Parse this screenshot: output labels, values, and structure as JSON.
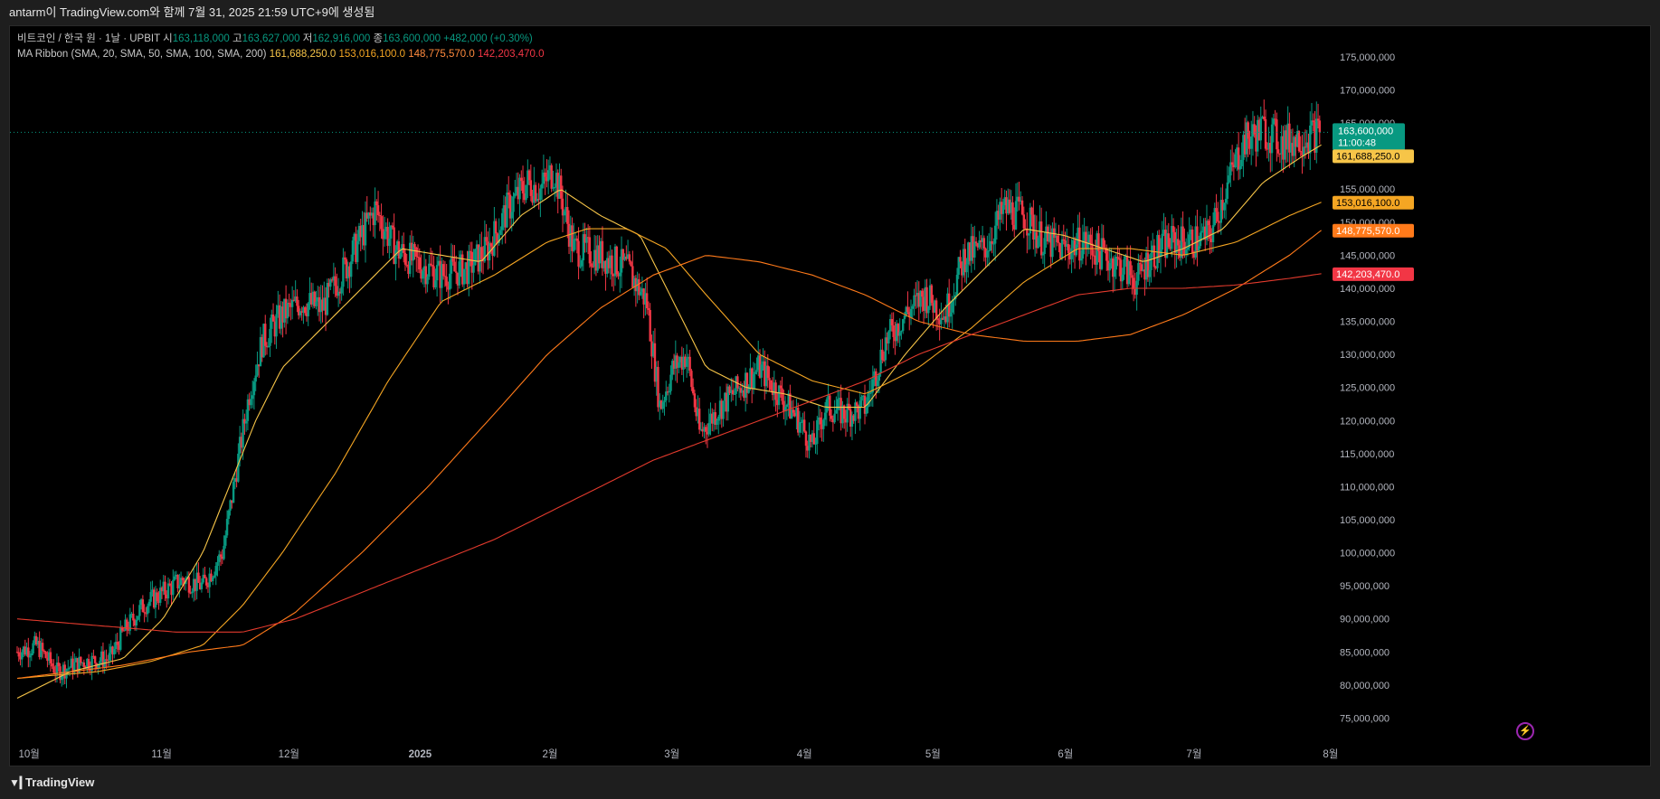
{
  "header": {
    "title": "antarm이 TradingView.com와 함께 7월 31, 2025 21:59 UTC+9에 생성됨"
  },
  "legend": {
    "symbol": "비트코인 / 한국 원 · 1날 · UPBIT",
    "open_label": "시",
    "open": "163,118,000",
    "high_label": "고",
    "high": "163,627,000",
    "low_label": "저",
    "low": "162,916,000",
    "close_label": "종",
    "close": "163,600,000",
    "change": "+482,000 (+0.30%)",
    "ma_label": "MA Ribbon (SMA, 20, SMA, 50, SMA, 100, SMA, 200)",
    "ma20": "161,688,250.0",
    "ma50": "153,016,100.0",
    "ma100": "148,775,570.0",
    "ma200": "142,203,470.0"
  },
  "price_axis": {
    "ticks": [
      "175,000,000",
      "170,000,000",
      "165,000,000",
      "160,000,000",
      "155,000,000",
      "150,000,000",
      "145,000,000",
      "140,000,000",
      "135,000,000",
      "130,000,000",
      "125,000,000",
      "120,000,000",
      "115,000,000",
      "110,000,000",
      "105,000,000",
      "100,000,000",
      "95,000,000",
      "90,000,000",
      "85,000,000",
      "80,000,000",
      "75,000,000"
    ],
    "tick_values": [
      175000000,
      170000000,
      165000000,
      160000000,
      155000000,
      150000000,
      145000000,
      140000000,
      135000000,
      130000000,
      125000000,
      120000000,
      115000000,
      110000000,
      105000000,
      100000000,
      95000000,
      90000000,
      85000000,
      80000000,
      75000000
    ],
    "current_price_label": "163,600,000",
    "countdown": "11:00:48",
    "ma_labels": [
      {
        "text": "161,688,250.0",
        "value": 161688250,
        "color": "#f7c548",
        "text_color": "#000000"
      },
      {
        "text": "153,016,100.0",
        "value": 153016100,
        "color": "#f5a623",
        "text_color": "#000000"
      },
      {
        "text": "148,775,570.0",
        "value": 148775570,
        "color": "#ff7a1a",
        "text_color": "#ffffff"
      },
      {
        "text": "142,203,470.0",
        "value": 142203470,
        "color": "#f23645",
        "text_color": "#ffffff"
      }
    ]
  },
  "time_axis": {
    "labels": [
      "10월",
      "11월",
      "12월",
      "2025",
      "2월",
      "3월",
      "4월",
      "5월",
      "6월",
      "7월",
      "8월"
    ],
    "label_days": [
      9,
      109,
      205,
      304,
      402,
      494,
      594,
      691,
      791,
      888,
      991
    ]
  },
  "colors": {
    "up": "#089981",
    "down": "#f23645",
    "ma20": "#f7c548",
    "ma50": "#f5a623",
    "ma100": "#ff7a1a",
    "ma200": "#e23a2d",
    "last_price_bg": "#089981"
  },
  "chart_data": {
    "type": "candlestick",
    "symbol": "비트코인 / 한국 원",
    "interval": "1날",
    "x_unit": "calendar day",
    "ylim": [
      70000000,
      178000000
    ],
    "price_anchors": [
      [
        0,
        85000000
      ],
      [
        15,
        86000000
      ],
      [
        30,
        82000000
      ],
      [
        50,
        83500000
      ],
      [
        70,
        84000000
      ],
      [
        80,
        88000000
      ],
      [
        95,
        92000000
      ],
      [
        110,
        94000000
      ],
      [
        125,
        96000000
      ],
      [
        140,
        95000000
      ],
      [
        155,
        100000000
      ],
      [
        165,
        112000000
      ],
      [
        175,
        124000000
      ],
      [
        185,
        132000000
      ],
      [
        200,
        136000000
      ],
      [
        215,
        138000000
      ],
      [
        230,
        137000000
      ],
      [
        250,
        144000000
      ],
      [
        270,
        152000000
      ],
      [
        285,
        146000000
      ],
      [
        300,
        144000000
      ],
      [
        320,
        142000000
      ],
      [
        340,
        143000000
      ],
      [
        355,
        146000000
      ],
      [
        370,
        152000000
      ],
      [
        385,
        156000000
      ],
      [
        395,
        155000000
      ],
      [
        405,
        158000000
      ],
      [
        420,
        146000000
      ],
      [
        440,
        145000000
      ],
      [
        460,
        143000000
      ],
      [
        475,
        138000000
      ],
      [
        485,
        122000000
      ],
      [
        495,
        128000000
      ],
      [
        505,
        130000000
      ],
      [
        515,
        118000000
      ],
      [
        530,
        122000000
      ],
      [
        545,
        125000000
      ],
      [
        560,
        128000000
      ],
      [
        575,
        124000000
      ],
      [
        590,
        120000000
      ],
      [
        600,
        116000000
      ],
      [
        610,
        122000000
      ],
      [
        625,
        121000000
      ],
      [
        640,
        122000000
      ],
      [
        655,
        132000000
      ],
      [
        670,
        136000000
      ],
      [
        685,
        139000000
      ],
      [
        700,
        136000000
      ],
      [
        715,
        145000000
      ],
      [
        730,
        146000000
      ],
      [
        745,
        152000000
      ],
      [
        760,
        151000000
      ],
      [
        775,
        147000000
      ],
      [
        790,
        146000000
      ],
      [
        805,
        147000000
      ],
      [
        820,
        145000000
      ],
      [
        835,
        143000000
      ],
      [
        845,
        141000000
      ],
      [
        855,
        145000000
      ],
      [
        870,
        147000000
      ],
      [
        885,
        147000000
      ],
      [
        900,
        148000000
      ],
      [
        910,
        154000000
      ],
      [
        925,
        162000000
      ],
      [
        940,
        164000000
      ],
      [
        955,
        162000000
      ],
      [
        970,
        163000000
      ],
      [
        984,
        163600000
      ]
    ],
    "last_day": 984,
    "last_close": 163600000,
    "ma_values_latest": {
      "20": 161688250,
      "50": 153016100,
      "100": 148775570,
      "200": 142203470
    },
    "ma_ribbon_curves": {
      "20": [
        [
          0,
          78000000
        ],
        [
          40,
          82000000
        ],
        [
          80,
          84000000
        ],
        [
          110,
          90000000
        ],
        [
          140,
          100000000
        ],
        [
          160,
          110000000
        ],
        [
          180,
          120000000
        ],
        [
          200,
          128000000
        ],
        [
          230,
          134000000
        ],
        [
          260,
          140000000
        ],
        [
          290,
          146000000
        ],
        [
          320,
          145000000
        ],
        [
          350,
          144000000
        ],
        [
          380,
          151000000
        ],
        [
          410,
          155000000
        ],
        [
          440,
          151000000
        ],
        [
          470,
          148000000
        ],
        [
          500,
          136000000
        ],
        [
          520,
          128000000
        ],
        [
          550,
          125000000
        ],
        [
          580,
          124000000
        ],
        [
          610,
          122000000
        ],
        [
          640,
          122000000
        ],
        [
          670,
          130000000
        ],
        [
          700,
          137000000
        ],
        [
          730,
          143000000
        ],
        [
          760,
          149000000
        ],
        [
          790,
          148000000
        ],
        [
          820,
          146000000
        ],
        [
          850,
          144000000
        ],
        [
          880,
          146000000
        ],
        [
          910,
          149000000
        ],
        [
          940,
          156000000
        ],
        [
          970,
          160000000
        ],
        [
          984,
          161688250
        ]
      ],
      "50": [
        [
          0,
          81000000
        ],
        [
          60,
          82000000
        ],
        [
          100,
          83500000
        ],
        [
          140,
          86000000
        ],
        [
          170,
          92000000
        ],
        [
          200,
          100000000
        ],
        [
          240,
          112000000
        ],
        [
          280,
          126000000
        ],
        [
          320,
          138000000
        ],
        [
          360,
          142000000
        ],
        [
          400,
          147000000
        ],
        [
          430,
          149000000
        ],
        [
          460,
          149000000
        ],
        [
          490,
          146000000
        ],
        [
          520,
          139000000
        ],
        [
          560,
          130000000
        ],
        [
          600,
          126000000
        ],
        [
          640,
          124000000
        ],
        [
          680,
          128000000
        ],
        [
          720,
          134000000
        ],
        [
          760,
          141000000
        ],
        [
          800,
          146000000
        ],
        [
          840,
          146000000
        ],
        [
          880,
          145000000
        ],
        [
          920,
          147000000
        ],
        [
          960,
          151000000
        ],
        [
          984,
          153016100
        ]
      ],
      "100": [
        [
          0,
          81000000
        ],
        [
          80,
          83000000
        ],
        [
          130,
          85000000
        ],
        [
          170,
          86000000
        ],
        [
          210,
          91000000
        ],
        [
          260,
          100000000
        ],
        [
          310,
          110000000
        ],
        [
          360,
          121000000
        ],
        [
          400,
          130000000
        ],
        [
          440,
          137000000
        ],
        [
          480,
          142000000
        ],
        [
          520,
          145000000
        ],
        [
          560,
          144000000
        ],
        [
          600,
          142000000
        ],
        [
          640,
          139000000
        ],
        [
          680,
          135000000
        ],
        [
          720,
          133000000
        ],
        [
          760,
          132000000
        ],
        [
          800,
          132000000
        ],
        [
          840,
          133000000
        ],
        [
          880,
          136000000
        ],
        [
          920,
          140000000
        ],
        [
          960,
          145000000
        ],
        [
          984,
          148775570
        ]
      ],
      "200": [
        [
          0,
          90000000
        ],
        [
          60,
          89000000
        ],
        [
          120,
          88000000
        ],
        [
          170,
          88000000
        ],
        [
          210,
          90000000
        ],
        [
          260,
          94000000
        ],
        [
          310,
          98000000
        ],
        [
          360,
          102000000
        ],
        [
          400,
          106000000
        ],
        [
          440,
          110000000
        ],
        [
          480,
          114000000
        ],
        [
          520,
          117000000
        ],
        [
          560,
          120000000
        ],
        [
          600,
          123000000
        ],
        [
          640,
          126000000
        ],
        [
          680,
          130000000
        ],
        [
          720,
          133000000
        ],
        [
          760,
          136000000
        ],
        [
          800,
          139000000
        ],
        [
          840,
          140000000
        ],
        [
          880,
          140000000
        ],
        [
          920,
          140500000
        ],
        [
          960,
          141500000
        ],
        [
          984,
          142203470
        ]
      ]
    }
  },
  "footer": {
    "brand": "TradingView",
    "logo_icon": "tradingview-logo-icon",
    "alert_icon": "lightning-icon"
  }
}
